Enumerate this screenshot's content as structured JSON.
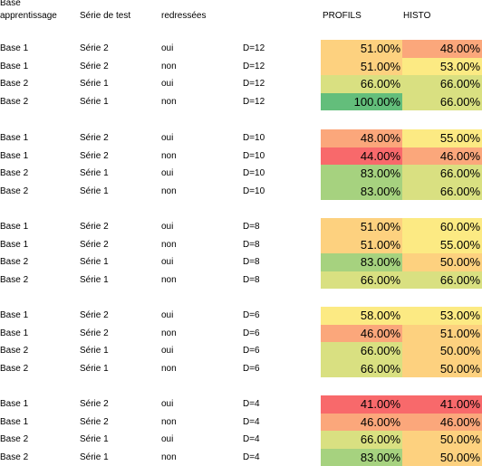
{
  "headers": {
    "base_line1": "Base",
    "base_line2": "apprentissage",
    "serie": "Série de test",
    "redressees": "redressées",
    "profils": "PROFILS",
    "histo": "HISTO"
  },
  "colors": {
    "red": "#f8696b",
    "orange": "#fba77b",
    "light_orange": "#fdd17f",
    "yellow": "#fcea83",
    "yellow_green": "#d9e081",
    "light_green": "#a6d27f",
    "green": "#63be7b"
  },
  "groups": [
    {
      "rows": [
        {
          "base": "Base 1",
          "serie": "Série 2",
          "red": "oui",
          "d": "D=12",
          "profils": "51.00%",
          "profils_color": "light_orange",
          "histo": "48.00%",
          "histo_color": "orange"
        },
        {
          "base": "Base 1",
          "serie": "Série 2",
          "red": "non",
          "d": "D=12",
          "profils": "51.00%",
          "profils_color": "light_orange",
          "histo": "53.00%",
          "histo_color": "yellow"
        },
        {
          "base": "Base 2",
          "serie": "Série 1",
          "red": "oui",
          "d": "D=12",
          "profils": "66.00%",
          "profils_color": "yellow_green",
          "histo": "66.00%",
          "histo_color": "yellow_green"
        },
        {
          "base": "Base 2",
          "serie": "Série 1",
          "red": "non",
          "d": "D=12",
          "profils": "100.00%",
          "profils_color": "green",
          "histo": "66.00%",
          "histo_color": "yellow_green"
        }
      ]
    },
    {
      "rows": [
        {
          "base": "Base 1",
          "serie": "Série 2",
          "red": "oui",
          "d": "D=10",
          "profils": "48.00%",
          "profils_color": "orange",
          "histo": "55.00%",
          "histo_color": "yellow"
        },
        {
          "base": "Base 1",
          "serie": "Série 2",
          "red": "non",
          "d": "D=10",
          "profils": "44.00%",
          "profils_color": "red",
          "histo": "46.00%",
          "histo_color": "orange"
        },
        {
          "base": "Base 2",
          "serie": "Série 1",
          "red": "oui",
          "d": "D=10",
          "profils": "83.00%",
          "profils_color": "light_green",
          "histo": "66.00%",
          "histo_color": "yellow_green"
        },
        {
          "base": "Base 2",
          "serie": "Série 1",
          "red": "non",
          "d": "D=10",
          "profils": "83.00%",
          "profils_color": "light_green",
          "histo": "66.00%",
          "histo_color": "yellow_green"
        }
      ]
    },
    {
      "rows": [
        {
          "base": "Base 1",
          "serie": "Série 2",
          "red": "oui",
          "d": "D=8",
          "profils": "51.00%",
          "profils_color": "light_orange",
          "histo": "60.00%",
          "histo_color": "yellow"
        },
        {
          "base": "Base 1",
          "serie": "Série 2",
          "red": "non",
          "d": "D=8",
          "profils": "51.00%",
          "profils_color": "light_orange",
          "histo": "55.00%",
          "histo_color": "yellow"
        },
        {
          "base": "Base 2",
          "serie": "Série 1",
          "red": "oui",
          "d": "D=8",
          "profils": "83.00%",
          "profils_color": "light_green",
          "histo": "50.00%",
          "histo_color": "light_orange"
        },
        {
          "base": "Base 2",
          "serie": "Série 1",
          "red": "non",
          "d": "D=8",
          "profils": "66.00%",
          "profils_color": "yellow_green",
          "histo": "66.00%",
          "histo_color": "yellow_green"
        }
      ]
    },
    {
      "rows": [
        {
          "base": "Base 1",
          "serie": "Série 2",
          "red": "oui",
          "d": "D=6",
          "profils": "58.00%",
          "profils_color": "yellow",
          "histo": "53.00%",
          "histo_color": "yellow"
        },
        {
          "base": "Base 1",
          "serie": "Série 2",
          "red": "non",
          "d": "D=6",
          "profils": "46.00%",
          "profils_color": "orange",
          "histo": "51.00%",
          "histo_color": "light_orange"
        },
        {
          "base": "Base 2",
          "serie": "Série 1",
          "red": "oui",
          "d": "D=6",
          "profils": "66.00%",
          "profils_color": "yellow_green",
          "histo": "50.00%",
          "histo_color": "light_orange"
        },
        {
          "base": "Base 2",
          "serie": "Série 1",
          "red": "non",
          "d": "D=6",
          "profils": "66.00%",
          "profils_color": "yellow_green",
          "histo": "50.00%",
          "histo_color": "light_orange"
        }
      ]
    },
    {
      "rows": [
        {
          "base": "Base 1",
          "serie": "Série 2",
          "red": "oui",
          "d": "D=4",
          "profils": "41.00%",
          "profils_color": "red",
          "histo": "41.00%",
          "histo_color": "red"
        },
        {
          "base": "Base 1",
          "serie": "Série 2",
          "red": "non",
          "d": "D=4",
          "profils": "46.00%",
          "profils_color": "orange",
          "histo": "46.00%",
          "histo_color": "orange"
        },
        {
          "base": "Base 2",
          "serie": "Série 1",
          "red": "oui",
          "d": "D=4",
          "profils": "66.00%",
          "profils_color": "yellow_green",
          "histo": "50.00%",
          "histo_color": "light_orange"
        },
        {
          "base": "Base 2",
          "serie": "Série 1",
          "red": "non",
          "d": "D=4",
          "profils": "83.00%",
          "profils_color": "light_green",
          "histo": "50.00%",
          "histo_color": "light_orange"
        }
      ]
    }
  ]
}
